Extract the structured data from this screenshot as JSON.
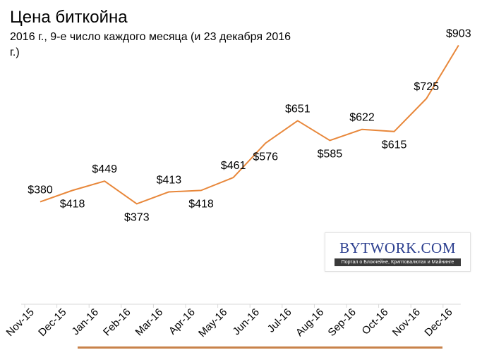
{
  "chart_data": {
    "type": "line",
    "title": "Цена биткойна",
    "subtitle": "2016 г., 9-е число каждого месяца (и 23 декабря 2016 г.)",
    "xlabel": "",
    "ylabel": "",
    "categories": [
      "Nov-15",
      "Dec-15",
      "Jan-16",
      "Feb-16",
      "Mar-16",
      "Apr-16",
      "May-16",
      "Jun-16",
      "Jul-16",
      "Aug-16",
      "Sep-16",
      "Oct-16",
      "Nov-16",
      "Dec-16"
    ],
    "x": [
      "Nov-15",
      "Dec-15",
      "Jan-16",
      "Feb-16",
      "Mar-16",
      "Apr-16",
      "May-16",
      "Jun-16",
      "Jul-16",
      "Aug-16",
      "Sep-16",
      "Oct-16",
      "Nov-16",
      "Dec-16"
    ],
    "series": [
      {
        "values": [
          380,
          418,
          449,
          373,
          413,
          418,
          461,
          576,
          651,
          585,
          622,
          615,
          725,
          903
        ],
        "labels": [
          "$380",
          "$418",
          "$449",
          "$373",
          "$413",
          "$418",
          "$461",
          "$576",
          "$651",
          "$585",
          "$622",
          "$615",
          "$725",
          "$903"
        ],
        "color": "#e8873a"
      }
    ],
    "label_positions": [
      "above",
      "below",
      "above",
      "below",
      "above",
      "below",
      "above",
      "below",
      "above",
      "below",
      "above",
      "below",
      "above",
      "above"
    ],
    "grid": false,
    "legend": "none"
  },
  "watermark": {
    "brand": "BYTWORK.COM",
    "tagline": "Портал о Блокчейне, Криптовалютах и Майнинге"
  },
  "colors": {
    "line": "#e8873a",
    "axis": "#d9d9d9",
    "brand": "#2c3f8f",
    "bar": "#c8824a"
  }
}
